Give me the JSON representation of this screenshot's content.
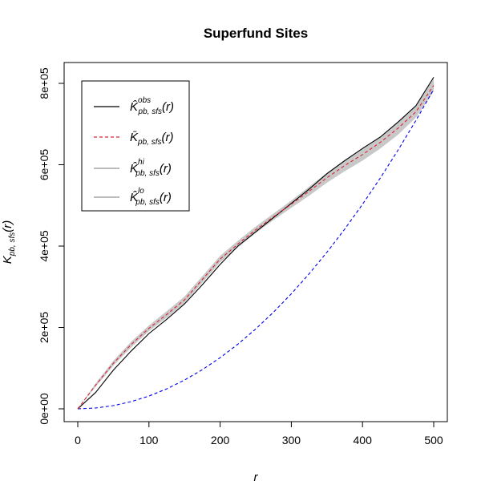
{
  "chart_data": {
    "type": "line",
    "title": "Superfund Sites",
    "xlabel": "r",
    "ylabel": {
      "main": "K",
      "sub": "pb, sfs",
      "paren": "(r)"
    },
    "xlim": [
      0,
      500
    ],
    "ylim": [
      0,
      800000
    ],
    "xticks": [
      0,
      100,
      200,
      300,
      400,
      500
    ],
    "xtick_labels": [
      "0",
      "100",
      "200",
      "300",
      "400",
      "500"
    ],
    "yticks": [
      0,
      200000,
      400000,
      600000,
      800000
    ],
    "ytick_labels": [
      "0e+00",
      "2e+05",
      "4e+05",
      "6e+05",
      "8e+05"
    ],
    "x": [
      0,
      25,
      50,
      75,
      100,
      125,
      150,
      175,
      200,
      225,
      250,
      275,
      300,
      325,
      350,
      375,
      400,
      425,
      450,
      475,
      500
    ],
    "series": [
      {
        "name": "obs",
        "style": "solid",
        "color": "#000000",
        "values": [
          0,
          40000,
          95000,
          142000,
          185000,
          220000,
          258000,
          305000,
          355000,
          400000,
          435000,
          470000,
          505000,
          540000,
          578000,
          610000,
          640000,
          668000,
          705000,
          745000,
          815000
        ]
      },
      {
        "name": "theo",
        "style": "dashed",
        "color": "#dd2233",
        "values": [
          0,
          58000,
          112000,
          158000,
          198000,
          232000,
          268000,
          318000,
          368000,
          405000,
          440000,
          472000,
          503000,
          535000,
          568000,
          598000,
          625000,
          655000,
          690000,
          730000,
          795000
        ]
      },
      {
        "name": "hi",
        "style": "solid",
        "color": "#bbbbbb",
        "values": [
          0,
          62000,
          118000,
          165000,
          205000,
          240000,
          276000,
          326000,
          376000,
          413000,
          448000,
          480000,
          512000,
          546000,
          580000,
          612000,
          640000,
          670000,
          706000,
          745000,
          812000
        ]
      },
      {
        "name": "lo",
        "style": "solid",
        "color": "#bbbbbb",
        "values": [
          0,
          54000,
          106000,
          151000,
          191000,
          224000,
          260000,
          310000,
          360000,
          397000,
          432000,
          464000,
          494000,
          524000,
          556000,
          584000,
          610000,
          640000,
          674000,
          716000,
          780000
        ]
      },
      {
        "name": "csr",
        "style": "dashed",
        "color": "#0000ee",
        "values": [
          0,
          1960,
          7850,
          17700,
          31400,
          49100,
          70700,
          96200,
          125700,
          159000,
          196300,
          237600,
          282700,
          331800,
          384800,
          441800,
          502700,
          567400,
          636200,
          708800,
          785400
        ]
      }
    ],
    "legend": {
      "position": "top-left",
      "entries": [
        {
          "series": "obs",
          "symbol": "K̂",
          "sup": "obs",
          "sub": "pb, sfs",
          "paren": "(r)"
        },
        {
          "series": "theo",
          "symbol": "K̄",
          "sup": "",
          "sub": "pb, sfs",
          "paren": "(r)"
        },
        {
          "series": "hi",
          "symbol": "K̂",
          "sup": "hi",
          "sub": "pb, sfs",
          "paren": "(r)"
        },
        {
          "series": "lo",
          "symbol": "K̂",
          "sup": "lo",
          "sub": "pb, sfs",
          "paren": "(r)"
        }
      ]
    }
  }
}
